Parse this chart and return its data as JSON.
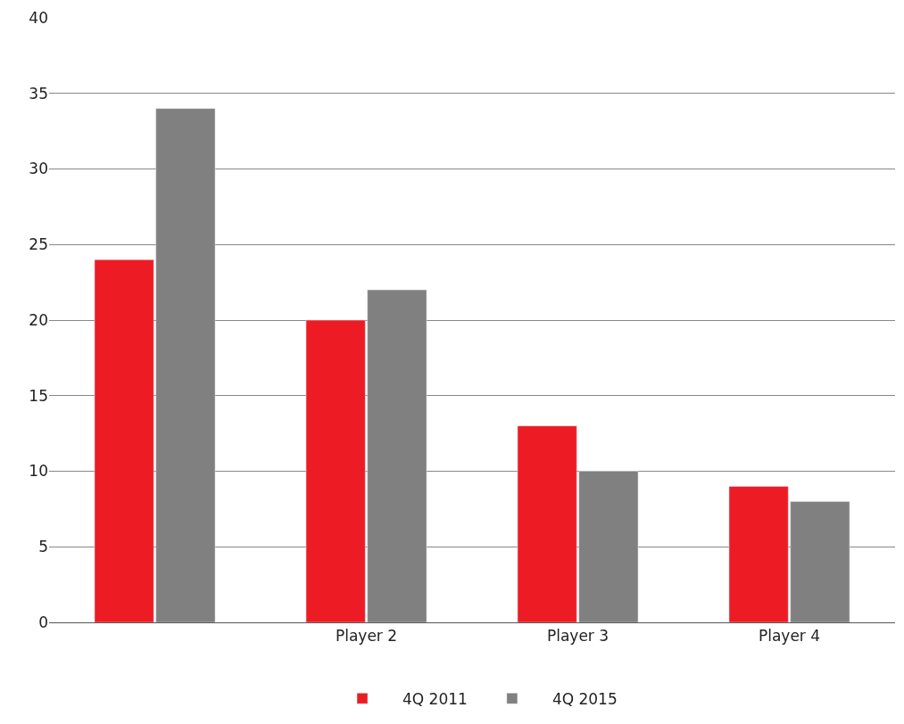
{
  "chart_data": {
    "type": "bar",
    "categories": [
      null,
      "Player 2",
      "Player 3",
      "Player 4"
    ],
    "series": [
      {
        "name": "4Q 2011",
        "color": "#ed1c24",
        "values": [
          24,
          20,
          13,
          9
        ]
      },
      {
        "name": "4Q 2015",
        "color": "#808080",
        "values": [
          34,
          22,
          10,
          8
        ]
      }
    ],
    "ylim": [
      0,
      40
    ],
    "yticks": [
      0,
      5,
      10,
      15,
      20,
      25,
      30,
      35,
      40
    ],
    "grid": "y",
    "legend": "bottom"
  }
}
